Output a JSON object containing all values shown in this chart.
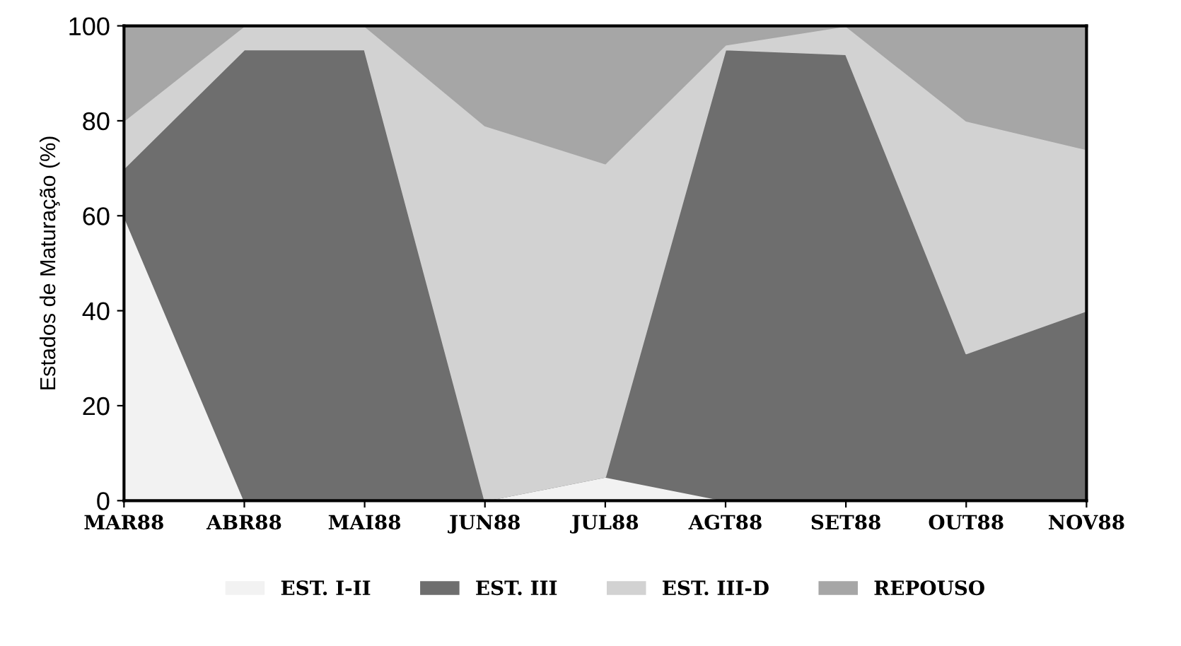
{
  "chart_data": {
    "type": "area",
    "stacked": true,
    "ylabel": "Estados de Maturação (%)",
    "categories": [
      "MAR88",
      "ABR88",
      "MAI88",
      "JUN88",
      "JUL88",
      "AGT88",
      "SET88",
      "OUT88",
      "NOV88"
    ],
    "series": [
      {
        "name": "EST. I-II",
        "color": "#f2f2f2",
        "values": [
          60,
          0,
          0,
          0,
          5,
          0,
          0,
          0,
          0
        ]
      },
      {
        "name": "EST. III",
        "color": "#6e6e6e",
        "values": [
          10,
          95,
          95,
          0,
          0,
          95,
          94,
          31,
          40
        ]
      },
      {
        "name": "EST. III-D",
        "color": "#d2d2d2",
        "values": [
          10,
          5,
          5,
          79,
          66,
          1,
          6,
          49,
          34
        ]
      },
      {
        "name": "REPOUSO",
        "color": "#a6a6a6",
        "values": [
          20,
          0,
          0,
          21,
          29,
          4,
          0,
          20,
          26
        ]
      }
    ],
    "ylim": [
      0,
      100
    ],
    "yticks": [
      0,
      20,
      40,
      60,
      80,
      100
    ],
    "grid": false,
    "legend": "bottom"
  }
}
